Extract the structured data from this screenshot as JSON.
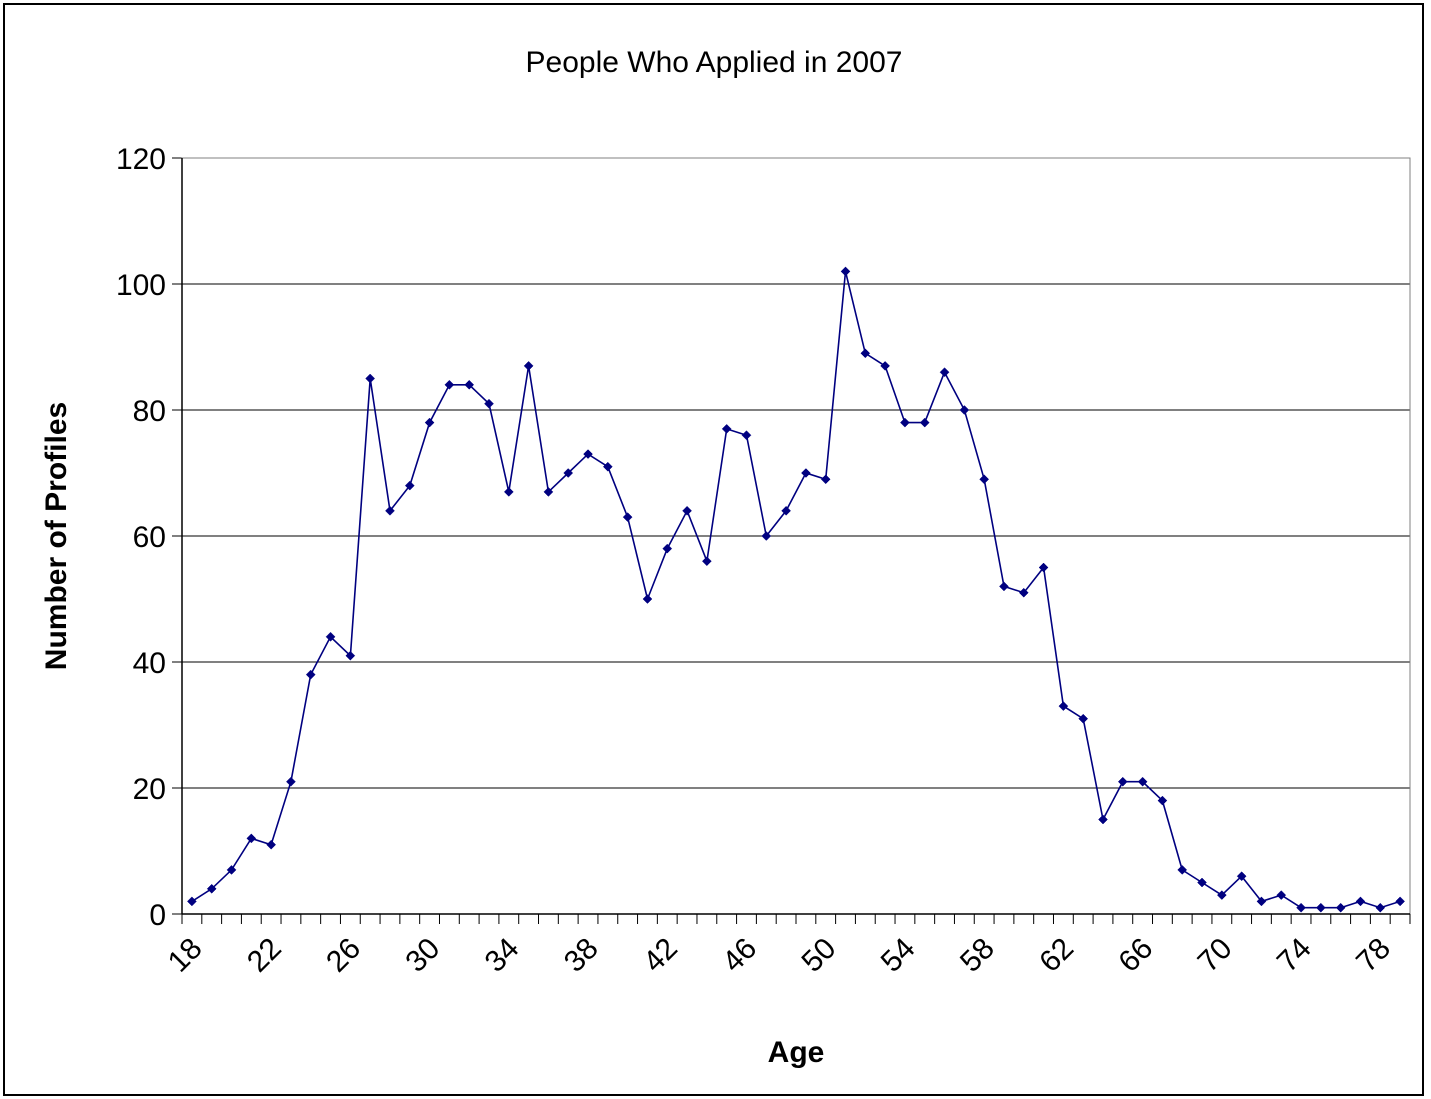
{
  "chart_data": {
    "type": "line",
    "title": "People Who Applied in 2007",
    "xlabel": "Age",
    "ylabel": "Number of Profiles",
    "ylim": [
      0,
      120
    ],
    "yticks": [
      0,
      20,
      40,
      60,
      80,
      100,
      120
    ],
    "xlim": [
      18,
      79
    ],
    "xtick_labels": [
      "18",
      "22",
      "26",
      "30",
      "34",
      "38",
      "42",
      "46",
      "50",
      "54",
      "58",
      "62",
      "66",
      "70",
      "74",
      "78"
    ],
    "grid": "horizontal",
    "legend": "none",
    "marker": "diamond",
    "series_color": "#000080",
    "x": [
      18,
      19,
      20,
      21,
      22,
      23,
      24,
      25,
      26,
      27,
      28,
      29,
      30,
      31,
      32,
      33,
      34,
      35,
      36,
      37,
      38,
      39,
      40,
      41,
      42,
      43,
      44,
      45,
      46,
      47,
      48,
      49,
      50,
      51,
      52,
      53,
      54,
      55,
      56,
      57,
      58,
      59,
      60,
      61,
      62,
      63,
      64,
      65,
      66,
      67,
      68,
      69,
      70,
      71,
      72,
      73,
      74,
      75,
      76,
      77,
      78,
      79
    ],
    "series": [
      {
        "values": [
          2,
          4,
          7,
          12,
          11,
          21,
          38,
          44,
          41,
          85,
          64,
          68,
          78,
          84,
          84,
          81,
          67,
          87,
          67,
          70,
          73,
          71,
          63,
          50,
          58,
          64,
          56,
          77,
          76,
          60,
          64,
          70,
          69,
          102,
          89,
          87,
          78,
          78,
          86,
          80,
          69,
          52,
          51,
          55,
          33,
          31,
          15,
          21,
          21,
          18,
          7,
          5,
          3,
          6,
          2,
          3,
          1,
          1,
          1,
          2,
          1,
          2
        ]
      }
    ]
  }
}
